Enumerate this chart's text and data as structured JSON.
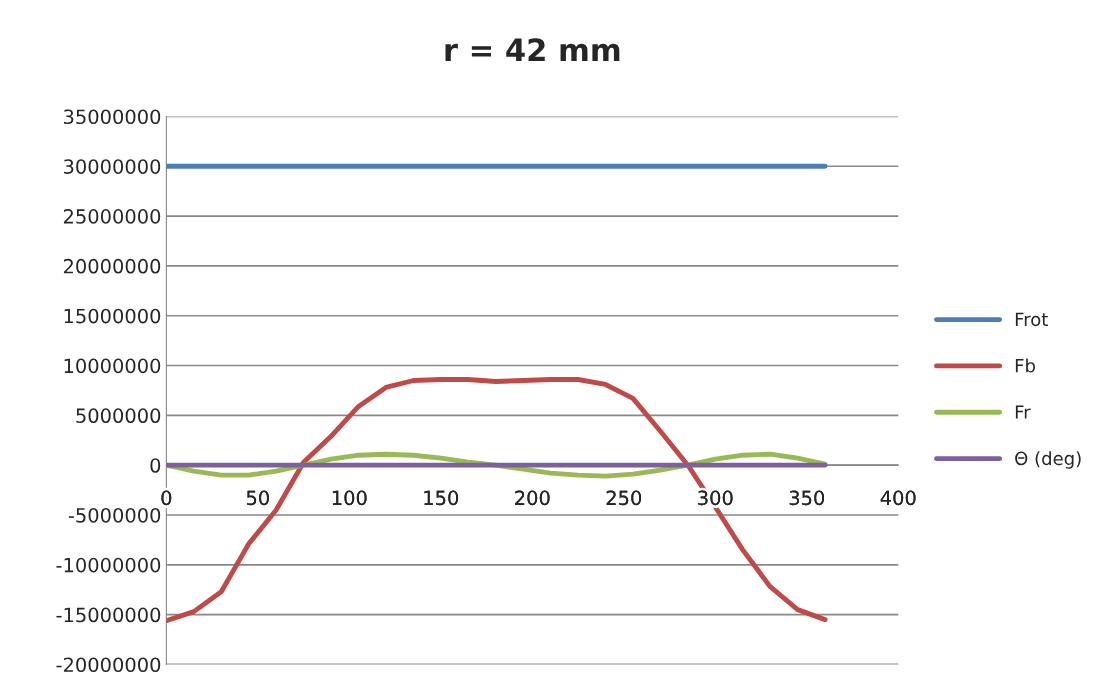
{
  "chart_data": {
    "type": "line",
    "title": "r = 42 mm",
    "xlim": [
      0,
      400
    ],
    "xticks": [
      0,
      50,
      100,
      150,
      200,
      250,
      300,
      350,
      400
    ],
    "ylim": [
      -20000000,
      35000000
    ],
    "yticks": [
      -20000000,
      -15000000,
      -10000000,
      -5000000,
      0,
      5000000,
      10000000,
      15000000,
      20000000,
      25000000,
      30000000,
      35000000
    ],
    "grid": "y",
    "legend": "right",
    "marker": "none",
    "line_style": "solid",
    "series": [
      {
        "name": "Frot",
        "color": "#4a7ebb",
        "x": [
          0,
          360
        ],
        "values": [
          30000000,
          30000000
        ]
      },
      {
        "name": "Fb",
        "color": "#be4b48",
        "x": [
          0,
          15,
          30,
          45,
          60,
          75,
          90,
          105,
          120,
          135,
          150,
          165,
          180,
          195,
          210,
          225,
          240,
          255,
          270,
          285,
          300,
          315,
          330,
          345,
          360
        ],
        "values": [
          -15600000,
          -14700000,
          -12700000,
          -7900000,
          -4500000,
          300000,
          2900000,
          5900000,
          7800000,
          8500000,
          8600000,
          8600000,
          8400000,
          8500000,
          8600000,
          8600000,
          8100000,
          6700000,
          3400000,
          0,
          -4200000,
          -8500000,
          -12200000,
          -14500000,
          -15500000
        ]
      },
      {
        "name": "Fr",
        "color": "#98b954",
        "x": [
          0,
          15,
          30,
          45,
          60,
          75,
          90,
          105,
          120,
          135,
          150,
          165,
          180,
          195,
          210,
          225,
          240,
          255,
          270,
          285,
          300,
          315,
          330,
          345,
          360
        ],
        "values": [
          0,
          -600000,
          -1000000,
          -1000000,
          -600000,
          0,
          600000,
          1000000,
          1100000,
          1000000,
          700000,
          300000,
          0,
          -400000,
          -800000,
          -1000000,
          -1100000,
          -900000,
          -500000,
          0,
          600000,
          1000000,
          1100000,
          700000,
          100000
        ]
      },
      {
        "name": "Θ (deg)",
        "color": "#7d60a0",
        "x": [
          0,
          360
        ],
        "values": [
          0,
          0
        ]
      }
    ]
  }
}
